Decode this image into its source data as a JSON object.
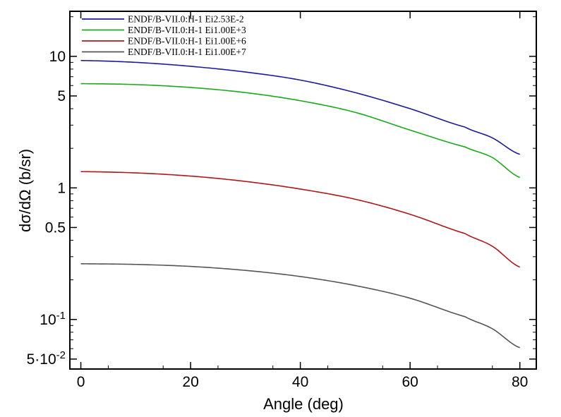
{
  "chart_data": {
    "type": "line",
    "xlabel": "Angle (deg)",
    "ylabel": "dσ/dΩ (b/sr)",
    "xlim": [
      -2,
      83
    ],
    "ylim": [
      0.042,
      22
    ],
    "yscale": "log",
    "grid": false,
    "legend_placement": "top-left",
    "x_ticks": [
      {
        "value": 0,
        "label": "0"
      },
      {
        "value": 20,
        "label": "20"
      },
      {
        "value": 40,
        "label": "40"
      },
      {
        "value": 60,
        "label": "60"
      },
      {
        "value": 80,
        "label": "80"
      }
    ],
    "y_ticks": [
      {
        "value": 0.05,
        "label": "5·10-2"
      },
      {
        "value": 0.1,
        "label": "10-1"
      },
      {
        "value": 0.5,
        "label": "0.5"
      },
      {
        "value": 1,
        "label": "1"
      },
      {
        "value": 5,
        "label": "5"
      },
      {
        "value": 10,
        "label": "10"
      }
    ],
    "series": [
      {
        "name": "ENDF/B-VII.0:H-1 Ei2.53E-2",
        "color": "#1a1aa0",
        "x": [
          0,
          10,
          20,
          30,
          40,
          50,
          60,
          70,
          75,
          80
        ],
        "y": [
          9.3,
          9.0,
          8.4,
          7.6,
          6.6,
          5.3,
          4.0,
          2.9,
          2.4,
          1.8
        ]
      },
      {
        "name": "ENDF/B-VII.0:H-1 Ei1.00E+3",
        "color": "#1aaa1a",
        "x": [
          0,
          10,
          20,
          30,
          40,
          50,
          60,
          70,
          75,
          80
        ],
        "y": [
          6.2,
          6.1,
          5.8,
          5.3,
          4.6,
          3.75,
          2.75,
          2.05,
          1.7,
          1.2
        ]
      },
      {
        "name": "ENDF/B-VII.0:H-1 Ei1.00E+6",
        "color": "#b01818",
        "x": [
          0,
          10,
          20,
          30,
          40,
          50,
          60,
          70,
          75,
          80
        ],
        "y": [
          1.33,
          1.3,
          1.23,
          1.12,
          0.98,
          0.82,
          0.63,
          0.45,
          0.36,
          0.25
        ]
      },
      {
        "name": "ENDF/B-VII.0:H-1 Ei1.00E+7",
        "color": "#555555",
        "x": [
          0,
          10,
          20,
          30,
          40,
          50,
          60,
          70,
          75,
          80
        ],
        "y": [
          0.265,
          0.262,
          0.253,
          0.236,
          0.212,
          0.181,
          0.145,
          0.105,
          0.085,
          0.061
        ]
      }
    ]
  }
}
